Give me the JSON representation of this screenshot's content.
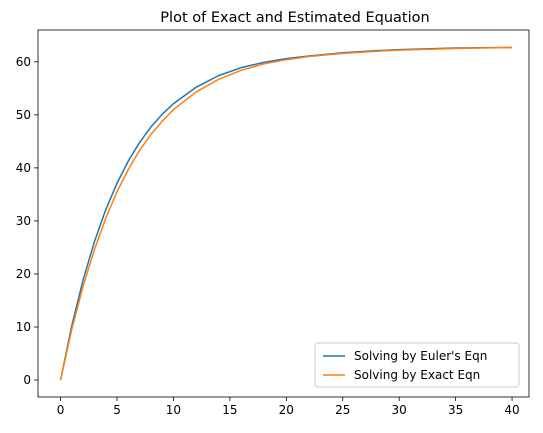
{
  "chart_data": {
    "type": "line",
    "title": "Plot of Exact and Estimated Equation",
    "xlabel": "",
    "ylabel": "",
    "xlim": [
      -2,
      41.5
    ],
    "ylim": [
      -3.2,
      66
    ],
    "xticks": [
      0,
      5,
      10,
      15,
      20,
      25,
      30,
      35,
      40
    ],
    "yticks": [
      0,
      10,
      20,
      30,
      40,
      50,
      60
    ],
    "grid": false,
    "legend_position": "lower-right",
    "series": [
      {
        "name": "Solving by Euler's Eqn",
        "color": "#1f77b4",
        "x": [
          0,
          1,
          2,
          3,
          4,
          5,
          6,
          7,
          8,
          9,
          10,
          12,
          14,
          16,
          18,
          20,
          22,
          25,
          28,
          30,
          35,
          40
        ],
        "y": [
          0,
          10.3,
          18.9,
          26.1,
          32.1,
          37.1,
          41.3,
          44.8,
          47.7,
          50.1,
          52.1,
          55.2,
          57.4,
          58.9,
          59.9,
          60.6,
          61.1,
          61.7,
          62.1,
          62.3,
          62.6,
          62.7
        ]
      },
      {
        "name": "Solving by Exact Eqn",
        "color": "#ff7f0e",
        "x": [
          0,
          1,
          2,
          3,
          4,
          5,
          6,
          7,
          8,
          9,
          10,
          12,
          14,
          16,
          18,
          20,
          22,
          25,
          28,
          30,
          35,
          40
        ],
        "y": [
          0,
          9.6,
          17.7,
          24.6,
          30.5,
          35.5,
          39.7,
          43.3,
          46.3,
          48.8,
          51.0,
          54.3,
          56.7,
          58.4,
          59.6,
          60.4,
          61.0,
          61.6,
          62.0,
          62.2,
          62.5,
          62.7
        ]
      }
    ]
  }
}
